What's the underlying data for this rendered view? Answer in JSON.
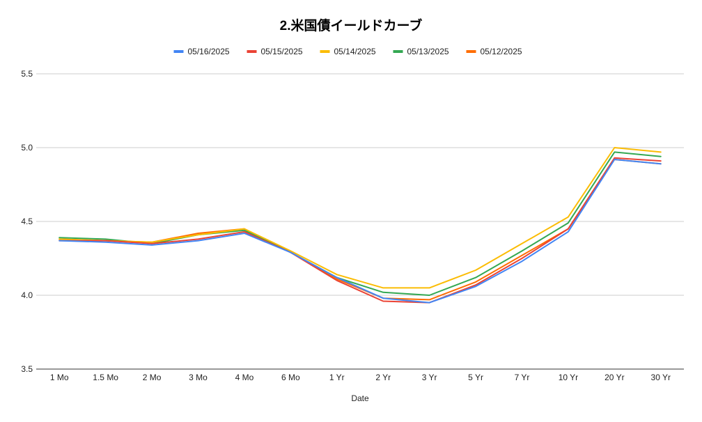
{
  "chart_data": {
    "type": "line",
    "title": "2.米国債イールドカーブ",
    "xlabel": "Date",
    "ylabel": "",
    "ylim": [
      3.5,
      5.5
    ],
    "yticks": [
      "3.5",
      "4.0",
      "4.5",
      "5.0",
      "5.5"
    ],
    "grid": true,
    "legend_position": "top",
    "categories": [
      "1 Mo",
      "1.5 Mo",
      "2 Mo",
      "3 Mo",
      "4 Mo",
      "6 Mo",
      "1 Yr",
      "2 Yr",
      "3 Yr",
      "5 Yr",
      "7 Yr",
      "10 Yr",
      "20 Yr",
      "30 Yr"
    ],
    "series": [
      {
        "name": "05/16/2025",
        "color": "#4285F4",
        "values": [
          4.37,
          4.36,
          4.34,
          4.37,
          4.42,
          4.29,
          4.12,
          3.98,
          3.95,
          4.06,
          4.23,
          4.43,
          4.92,
          4.89
        ]
      },
      {
        "name": "05/15/2025",
        "color": "#EA4335",
        "values": [
          4.37,
          4.37,
          4.35,
          4.38,
          4.43,
          4.29,
          4.1,
          3.96,
          3.95,
          4.07,
          4.25,
          4.45,
          4.93,
          4.91
        ]
      },
      {
        "name": "05/14/2025",
        "color": "#FBBC04",
        "values": [
          4.38,
          4.37,
          4.36,
          4.41,
          4.45,
          4.3,
          4.14,
          4.05,
          4.05,
          4.17,
          4.35,
          4.53,
          5.0,
          4.97
        ]
      },
      {
        "name": "05/13/2025",
        "color": "#34A853",
        "values": [
          4.39,
          4.38,
          4.35,
          4.41,
          4.44,
          4.29,
          4.12,
          4.02,
          4.0,
          4.12,
          4.3,
          4.49,
          4.97,
          4.94
        ]
      },
      {
        "name": "05/12/2025",
        "color": "#FF6D01",
        "values": [
          4.38,
          4.37,
          4.36,
          4.42,
          4.45,
          4.29,
          4.11,
          3.98,
          3.97,
          4.09,
          4.27,
          4.45,
          4.92,
          4.89
        ]
      }
    ]
  }
}
